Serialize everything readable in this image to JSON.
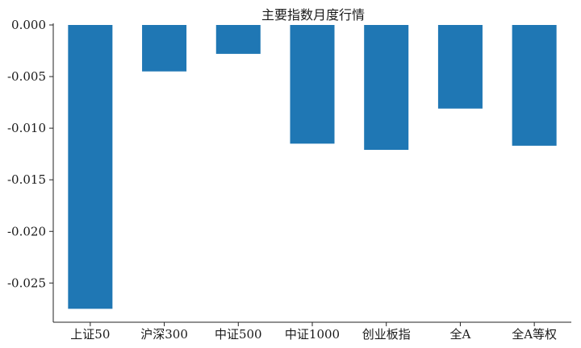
{
  "chart_data": {
    "type": "bar",
    "title": "主要指数月度行情",
    "xlabel": "",
    "ylabel": "",
    "categories": [
      "上证50",
      "沪深300",
      "中证500",
      "中证1000",
      "创业板指",
      "全A",
      "全A等权"
    ],
    "values": [
      -0.0275,
      -0.0045,
      -0.0028,
      -0.0115,
      -0.0121,
      -0.0081,
      -0.0117
    ],
    "ylim": [
      -0.0288,
      0.0
    ],
    "yticks": [
      {
        "value": 0.0,
        "label": "0.000"
      },
      {
        "value": -0.005,
        "label": "-0.005"
      },
      {
        "value": -0.01,
        "label": "-0.010"
      },
      {
        "value": -0.015,
        "label": "-0.015"
      },
      {
        "value": -0.02,
        "label": "-0.020"
      },
      {
        "value": -0.025,
        "label": "-0.025"
      }
    ],
    "grid": false,
    "legend": "none",
    "bar_color": "#1f77b4"
  }
}
